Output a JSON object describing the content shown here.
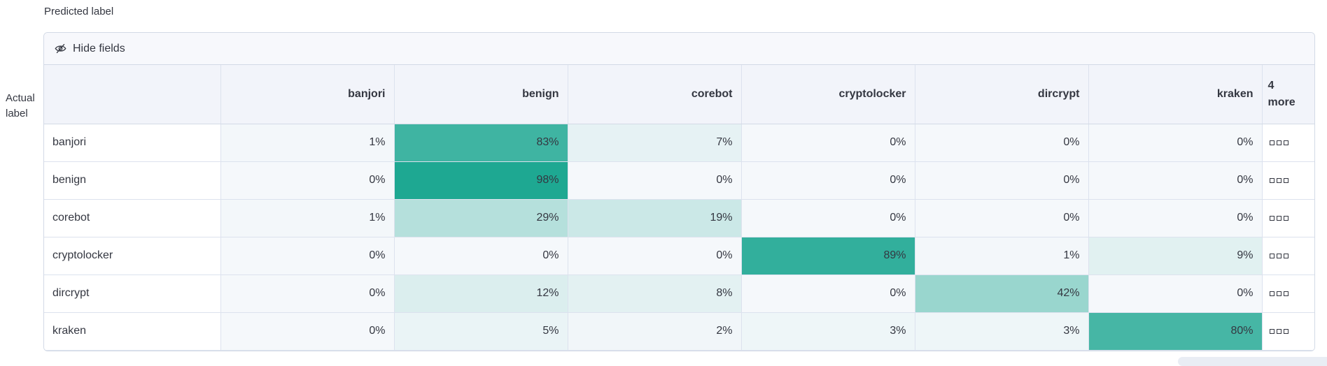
{
  "axes": {
    "predicted_label": "Predicted label",
    "actual_label": "Actual label"
  },
  "toolbar": {
    "hide_fields": "Hide fields",
    "icon": "eye-closed-icon"
  },
  "chart_data": {
    "type": "heatmap",
    "x_axis_title": "Predicted label",
    "y_axis_title": "Actual label",
    "columns": [
      "banjori",
      "benign",
      "corebot",
      "cryptolocker",
      "dircrypt",
      "kraken"
    ],
    "more_columns": {
      "count": "4",
      "label": "more"
    },
    "rows": [
      "banjori",
      "benign",
      "corebot",
      "cryptolocker",
      "dircrypt",
      "kraken"
    ],
    "values_percent": [
      [
        1,
        83,
        7,
        0,
        0,
        0
      ],
      [
        0,
        98,
        0,
        0,
        0,
        0
      ],
      [
        1,
        29,
        19,
        0,
        0,
        0
      ],
      [
        0,
        0,
        0,
        89,
        1,
        9
      ],
      [
        0,
        12,
        8,
        0,
        42,
        0
      ],
      [
        0,
        5,
        2,
        3,
        3,
        80
      ]
    ],
    "unit": "%",
    "heat_color_min": "#f5f8fb",
    "heat_color_max": "#1fa892",
    "text_color": "#343741",
    "row_actions_icon": "boxes-horizontal-icon"
  }
}
